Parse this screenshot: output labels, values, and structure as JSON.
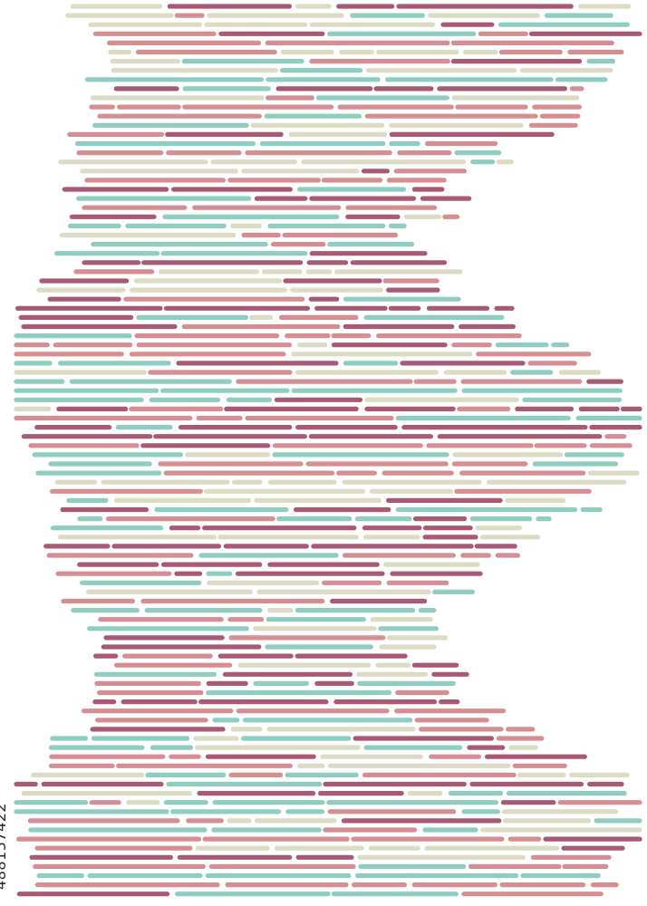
{
  "artwork": {
    "id_text": "488157422",
    "palette": {
      "plum": "#a85a74",
      "rose": "#d58f93",
      "teal": "#8ecdc0",
      "sage": "#dcdcc4"
    }
  }
}
